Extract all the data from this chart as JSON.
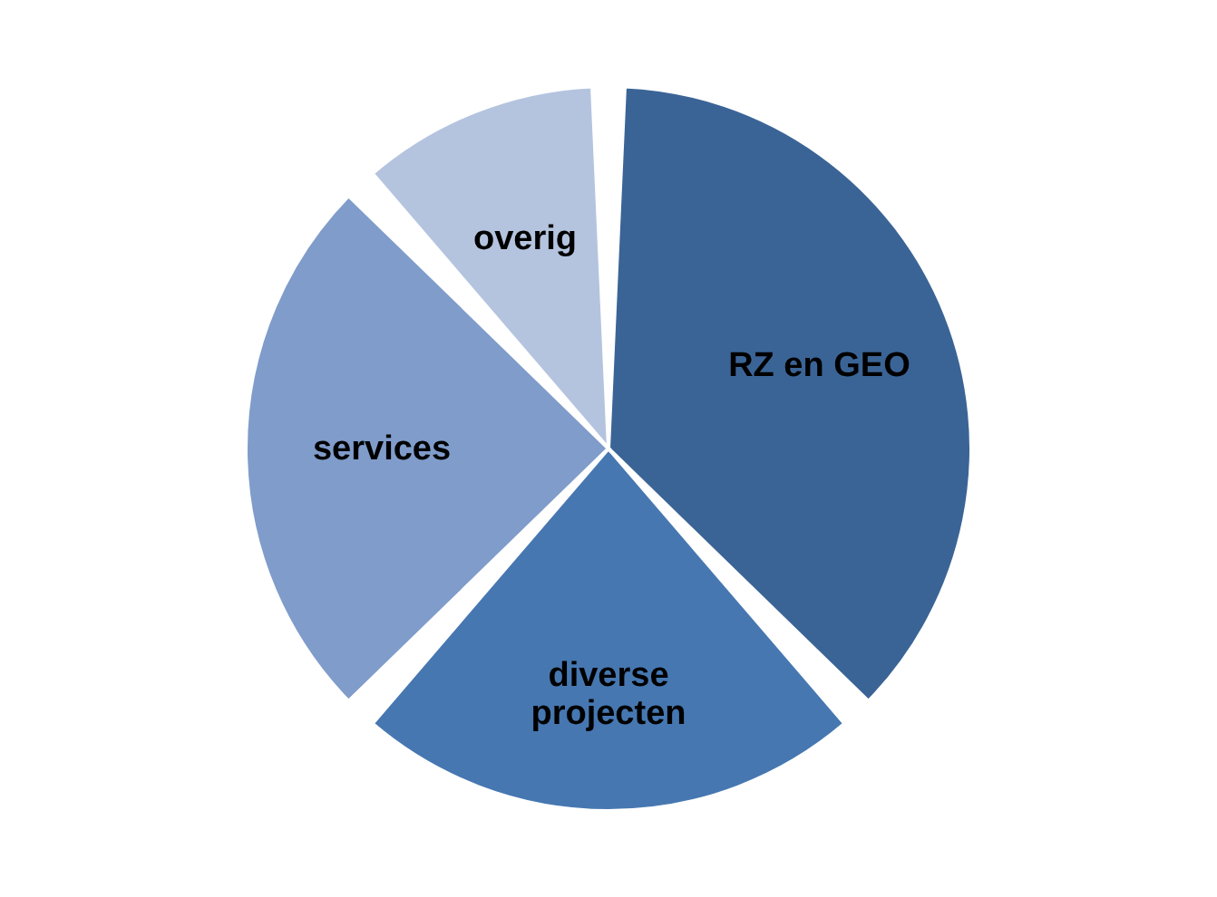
{
  "chart_data": {
    "type": "pie",
    "categories": [
      "RZ en GEO",
      "diverse projecten",
      "services",
      "overig"
    ],
    "values": [
      38,
      24,
      26,
      12
    ],
    "colors": [
      "#3b6496",
      "#4677b1",
      "#7f9cca",
      "#b4c4df"
    ],
    "legend": false
  }
}
